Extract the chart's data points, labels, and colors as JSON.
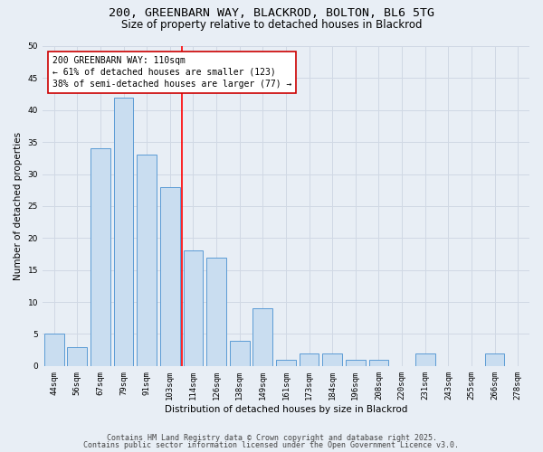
{
  "title_line1": "200, GREENBARN WAY, BLACKROD, BOLTON, BL6 5TG",
  "title_line2": "Size of property relative to detached houses in Blackrod",
  "xlabel": "Distribution of detached houses by size in Blackrod",
  "ylabel": "Number of detached properties",
  "categories": [
    "44sqm",
    "56sqm",
    "67sqm",
    "79sqm",
    "91sqm",
    "103sqm",
    "114sqm",
    "126sqm",
    "138sqm",
    "149sqm",
    "161sqm",
    "173sqm",
    "184sqm",
    "196sqm",
    "208sqm",
    "220sqm",
    "231sqm",
    "243sqm",
    "255sqm",
    "266sqm",
    "278sqm"
  ],
  "values": [
    5,
    3,
    34,
    42,
    33,
    28,
    18,
    17,
    4,
    9,
    1,
    2,
    2,
    1,
    1,
    0,
    2,
    0,
    0,
    2,
    0
  ],
  "bar_color": "#c9ddf0",
  "bar_edge_color": "#5b9bd5",
  "red_line_index": 5,
  "annotation_line1": "200 GREENBARN WAY: 110sqm",
  "annotation_line2": "← 61% of detached houses are smaller (123)",
  "annotation_line3": "38% of semi-detached houses are larger (77) →",
  "annotation_box_color": "#ffffff",
  "annotation_box_edge": "#cc0000",
  "ylim": [
    0,
    50
  ],
  "yticks": [
    0,
    5,
    10,
    15,
    20,
    25,
    30,
    35,
    40,
    45,
    50
  ],
  "grid_color": "#d0d8e4",
  "bg_color": "#e8eef5",
  "footer_line1": "Contains HM Land Registry data © Crown copyright and database right 2025.",
  "footer_line2": "Contains public sector information licensed under the Open Government Licence v3.0.",
  "title_fontsize": 9.5,
  "subtitle_fontsize": 8.5,
  "axis_label_fontsize": 7.5,
  "tick_fontsize": 6.5,
  "annotation_fontsize": 7,
  "footer_fontsize": 6
}
